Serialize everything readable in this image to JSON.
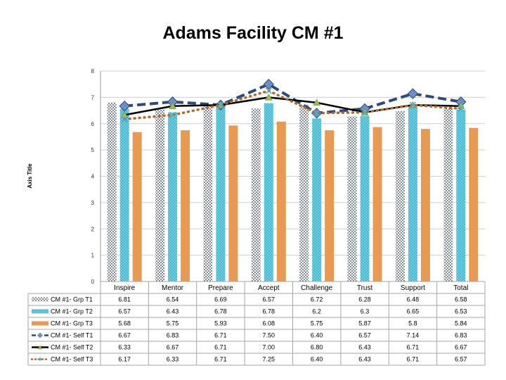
{
  "chart_data": {
    "type": "bar",
    "title": "Adams Facility CM #1",
    "ylabel": "Axis Title",
    "ylim": [
      0,
      8
    ],
    "yticks": [
      0,
      1,
      2,
      3,
      4,
      5,
      6,
      7,
      8
    ],
    "grid": true,
    "legend": "data-table",
    "categories": [
      "Inspire",
      "Mentor",
      "Prepare",
      "Accept",
      "Challenge",
      "Trust",
      "Support",
      "Total"
    ],
    "series": [
      {
        "name": "CM #1- Grp T1",
        "kind": "bar",
        "style": "dotted-fill",
        "color": "#2f3b52",
        "values": [
          6.81,
          6.54,
          6.69,
          6.57,
          6.72,
          6.28,
          6.48,
          6.58
        ],
        "labels": [
          "6.81",
          "6.54",
          "6.69",
          "6.57",
          "6.72",
          "6.28",
          "6.48",
          "6.58"
        ]
      },
      {
        "name": "CM #1- Grp T2",
        "kind": "bar",
        "style": "light-dotted-fill",
        "color": "#4bbcd4",
        "values": [
          6.57,
          6.43,
          6.78,
          6.78,
          6.2,
          6.3,
          6.65,
          6.53
        ],
        "labels": [
          "6.57",
          "6.43",
          "6.78",
          "6.78",
          "6.2",
          "6.3",
          "6.65",
          "6.53"
        ]
      },
      {
        "name": "CM #1- Grp T3",
        "kind": "bar",
        "style": "solid",
        "color": "#e89a52",
        "values": [
          5.68,
          5.75,
          5.93,
          6.08,
          5.75,
          5.87,
          5.8,
          5.84
        ],
        "labels": [
          "5.68",
          "5.75",
          "5.93",
          "6.08",
          "5.75",
          "5.87",
          "5.8",
          "5.84"
        ]
      },
      {
        "name": "CM #1- Self T1",
        "kind": "line",
        "style": "dashed-diamond",
        "color": "#2e4a7a",
        "values": [
          6.67,
          6.83,
          6.71,
          7.5,
          6.4,
          6.57,
          7.14,
          6.83
        ],
        "labels": [
          "6.67",
          "6.83",
          "6.71",
          "7.50",
          "6.40",
          "6.57",
          "7.14",
          "6.83"
        ]
      },
      {
        "name": "CM #1- Self T2",
        "kind": "line",
        "style": "solid-triangle",
        "color": "#000000",
        "values": [
          6.33,
          6.67,
          6.71,
          7.0,
          6.8,
          6.43,
          6.71,
          6.67
        ],
        "labels": [
          "6.33",
          "6.67",
          "6.71",
          "7.00",
          "6.80",
          "6.43",
          "6.71",
          "6.67"
        ]
      },
      {
        "name": "CM #1- Self T3",
        "kind": "line",
        "style": "dotted-x",
        "color": "#b06a2c",
        "values": [
          6.17,
          6.33,
          6.71,
          7.25,
          6.4,
          6.43,
          6.71,
          6.57
        ],
        "labels": [
          "6.17",
          "6.33",
          "6.71",
          "7.25",
          "6.40",
          "6.43",
          "6.71",
          "6.57"
        ]
      }
    ]
  }
}
